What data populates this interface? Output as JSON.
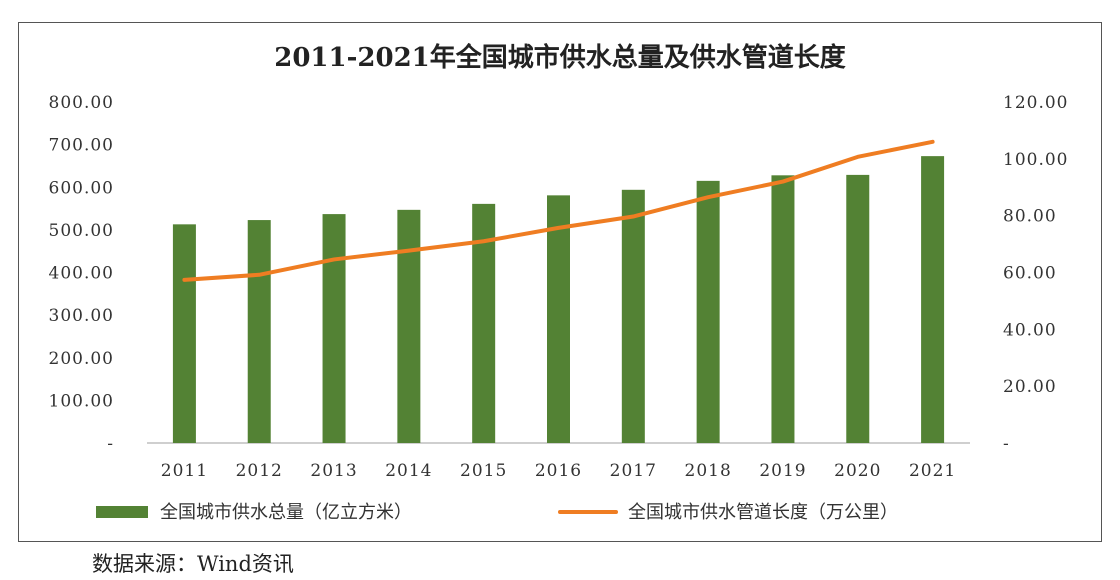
{
  "chart_data": {
    "type": "bar",
    "title": "2011-2021年全国城市供水总量及供水管道长度",
    "categories": [
      "2011",
      "2012",
      "2013",
      "2014",
      "2015",
      "2016",
      "2017",
      "2018",
      "2019",
      "2020",
      "2021"
    ],
    "series": [
      {
        "name": "全国城市供水总量（亿立方米）",
        "type": "bar",
        "axis": "left",
        "color": "#538234",
        "values": [
          513,
          523,
          537,
          547,
          561,
          581,
          594,
          615,
          628,
          629,
          673
        ]
      },
      {
        "name": "全国城市供水管道长度（万公里）",
        "type": "line",
        "axis": "right",
        "color": "#ef7d22",
        "values": [
          57.4,
          59.2,
          64.6,
          67.7,
          71.0,
          75.7,
          79.7,
          86.5,
          92.0,
          100.7,
          106.0
        ]
      }
    ],
    "y_left": {
      "min": 0,
      "max": 800,
      "ticks": [
        "-",
        "100.00",
        "200.00",
        "300.00",
        "400.00",
        "500.00",
        "600.00",
        "700.00",
        "800.00"
      ]
    },
    "y_right": {
      "min": 0,
      "max": 120,
      "ticks": [
        "-",
        "20.00",
        "40.00",
        "60.00",
        "80.00",
        "100.00",
        "120.00"
      ]
    },
    "grid": false,
    "legend_position": "bottom"
  },
  "source_note": "数据来源：Wind资讯"
}
